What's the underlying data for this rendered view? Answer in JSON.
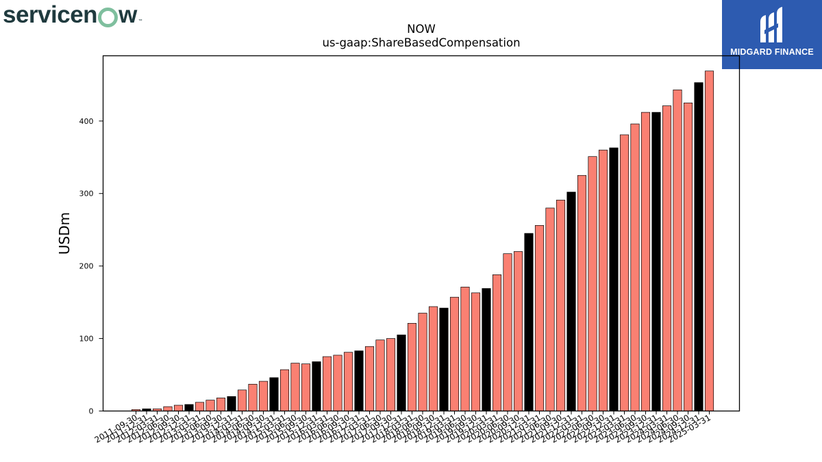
{
  "brand": {
    "left_logo_text_a": "servicen",
    "left_logo_text_b": "w",
    "left_logo_tm": "™",
    "right_logo_text": "MIDGARD FINANCE",
    "right_logo_bg": "#2d5bb0",
    "left_logo_accent": "#7fbf9e"
  },
  "chart_data": {
    "type": "bar",
    "title": "NOW",
    "subtitle": "us-gaap:ShareBasedCompensation",
    "xlabel": "",
    "ylabel": "USDm",
    "ylim": [
      0,
      490
    ],
    "yticks": [
      0,
      100,
      200,
      300,
      400
    ],
    "grid": false,
    "colors": {
      "quarter": "#fa8072",
      "fiscal_year_end": "#000000"
    },
    "categories": [
      "2011-09-30",
      "2011-12-31",
      "2012-03-31",
      "2012-06-30",
      "2012-09-30",
      "2012-12-31",
      "2013-03-31",
      "2013-06-30",
      "2013-09-30",
      "2013-12-31",
      "2014-03-31",
      "2014-06-30",
      "2014-09-30",
      "2014-12-31",
      "2015-03-31",
      "2015-06-30",
      "2015-09-30",
      "2015-12-31",
      "2016-03-31",
      "2016-06-30",
      "2016-09-30",
      "2016-12-31",
      "2017-03-31",
      "2017-06-30",
      "2017-09-30",
      "2017-12-31",
      "2018-03-31",
      "2018-06-30",
      "2018-09-30",
      "2018-12-31",
      "2019-03-31",
      "2019-06-30",
      "2019-09-30",
      "2019-12-31",
      "2020-03-31",
      "2020-06-30",
      "2020-09-30",
      "2020-12-31",
      "2021-03-31",
      "2021-06-30",
      "2021-09-30",
      "2021-12-31",
      "2022-03-31",
      "2022-06-30",
      "2022-09-30",
      "2022-12-31",
      "2023-03-31",
      "2023-06-30",
      "2023-09-30",
      "2023-12-31",
      "2024-03-31",
      "2024-06-30",
      "2024-09-30",
      "2024-12-31",
      "2025-03-31"
    ],
    "values": [
      2,
      3,
      3,
      6,
      8,
      9,
      12,
      15,
      18,
      20,
      29,
      37,
      41,
      46,
      57,
      66,
      65,
      68,
      75,
      77,
      81,
      83,
      89,
      98,
      100,
      105,
      121,
      135,
      144,
      142,
      157,
      171,
      163,
      169,
      188,
      217,
      220,
      245,
      256,
      280,
      291,
      302,
      325,
      351,
      360,
      363,
      381,
      396,
      412,
      412,
      421,
      443,
      425,
      453,
      469
    ],
    "fiscal_year_end_flags": [
      0,
      1,
      0,
      0,
      0,
      1,
      0,
      0,
      0,
      1,
      0,
      0,
      0,
      1,
      0,
      0,
      0,
      1,
      0,
      0,
      0,
      1,
      0,
      0,
      0,
      1,
      0,
      0,
      0,
      1,
      0,
      0,
      0,
      1,
      0,
      0,
      0,
      1,
      0,
      0,
      0,
      1,
      0,
      0,
      0,
      1,
      0,
      0,
      0,
      1,
      0,
      0,
      0,
      1,
      0
    ]
  }
}
